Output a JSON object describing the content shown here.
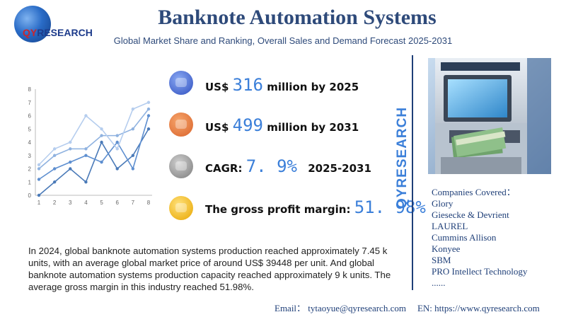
{
  "logo": {
    "q": "QY",
    "r": "RESEARCH"
  },
  "header": {
    "title": "Banknote Automation Systems",
    "subtitle": "Global Market Share and Ranking, Overall Sales and Demand Forecast 2025-2031"
  },
  "stats": {
    "s1": {
      "prefix": "US$",
      "value": "316",
      "suffix": "million by 2025",
      "icon": "qyr-badge-blue-icon"
    },
    "s2": {
      "prefix": "US$",
      "value": "499",
      "suffix": "million by 2031",
      "icon": "qyr-badge-orange-icon"
    },
    "s3": {
      "prefix": "CAGR:",
      "value": "7. 9%",
      "suffix": "2025-2031",
      "icon": "qyr-badge-gray-icon"
    },
    "s4": {
      "prefix": "The gross profit margin:",
      "value": "51. 98%",
      "icon": "qyr-badge-yellow-icon"
    }
  },
  "paragraph": "In 2024, global banknote automation systems production reached approximately 7.45 k units, with an average global market price of around US$ 39448 per unit. And global banknote automation systems production capacity reached approximately 9 k units. The average gross margin in this industry reached 51.98%.",
  "vertical_brand": "QYRESEARCH",
  "companies": {
    "heading": "Companies Covered：",
    "items": [
      "Glory",
      "Giesecke & Devrient",
      "LAUREL",
      "Cummins Allison",
      "Konyee",
      "SBM",
      "PRO Intellect Technology",
      "......"
    ]
  },
  "footer": {
    "email": "Email：  tytaoyue@qyresearch.com",
    "website": "EN: https://www.qyresearch.com"
  },
  "chart_data": {
    "type": "line",
    "x": [
      1,
      2,
      3,
      4,
      5,
      6,
      7,
      8
    ],
    "ylim": [
      0,
      8
    ],
    "yticks": [
      0,
      1,
      2,
      3,
      4,
      5,
      6,
      7,
      8
    ],
    "grid": false,
    "series": [
      {
        "values": [
          0,
          1,
          2,
          1,
          4,
          2,
          3,
          5
        ],
        "color": "#4a7ab8"
      },
      {
        "values": [
          1.2,
          2,
          2.5,
          3,
          2.5,
          4,
          2,
          6
        ],
        "color": "#5e8fd0"
      },
      {
        "values": [
          2,
          3,
          3.5,
          3.5,
          4.5,
          4.5,
          5,
          6.5
        ],
        "color": "#8fb2e0"
      },
      {
        "values": [
          2.3,
          3.5,
          4,
          6,
          5,
          3.5,
          6.5,
          7
        ],
        "color": "#b5cdee"
      }
    ]
  }
}
